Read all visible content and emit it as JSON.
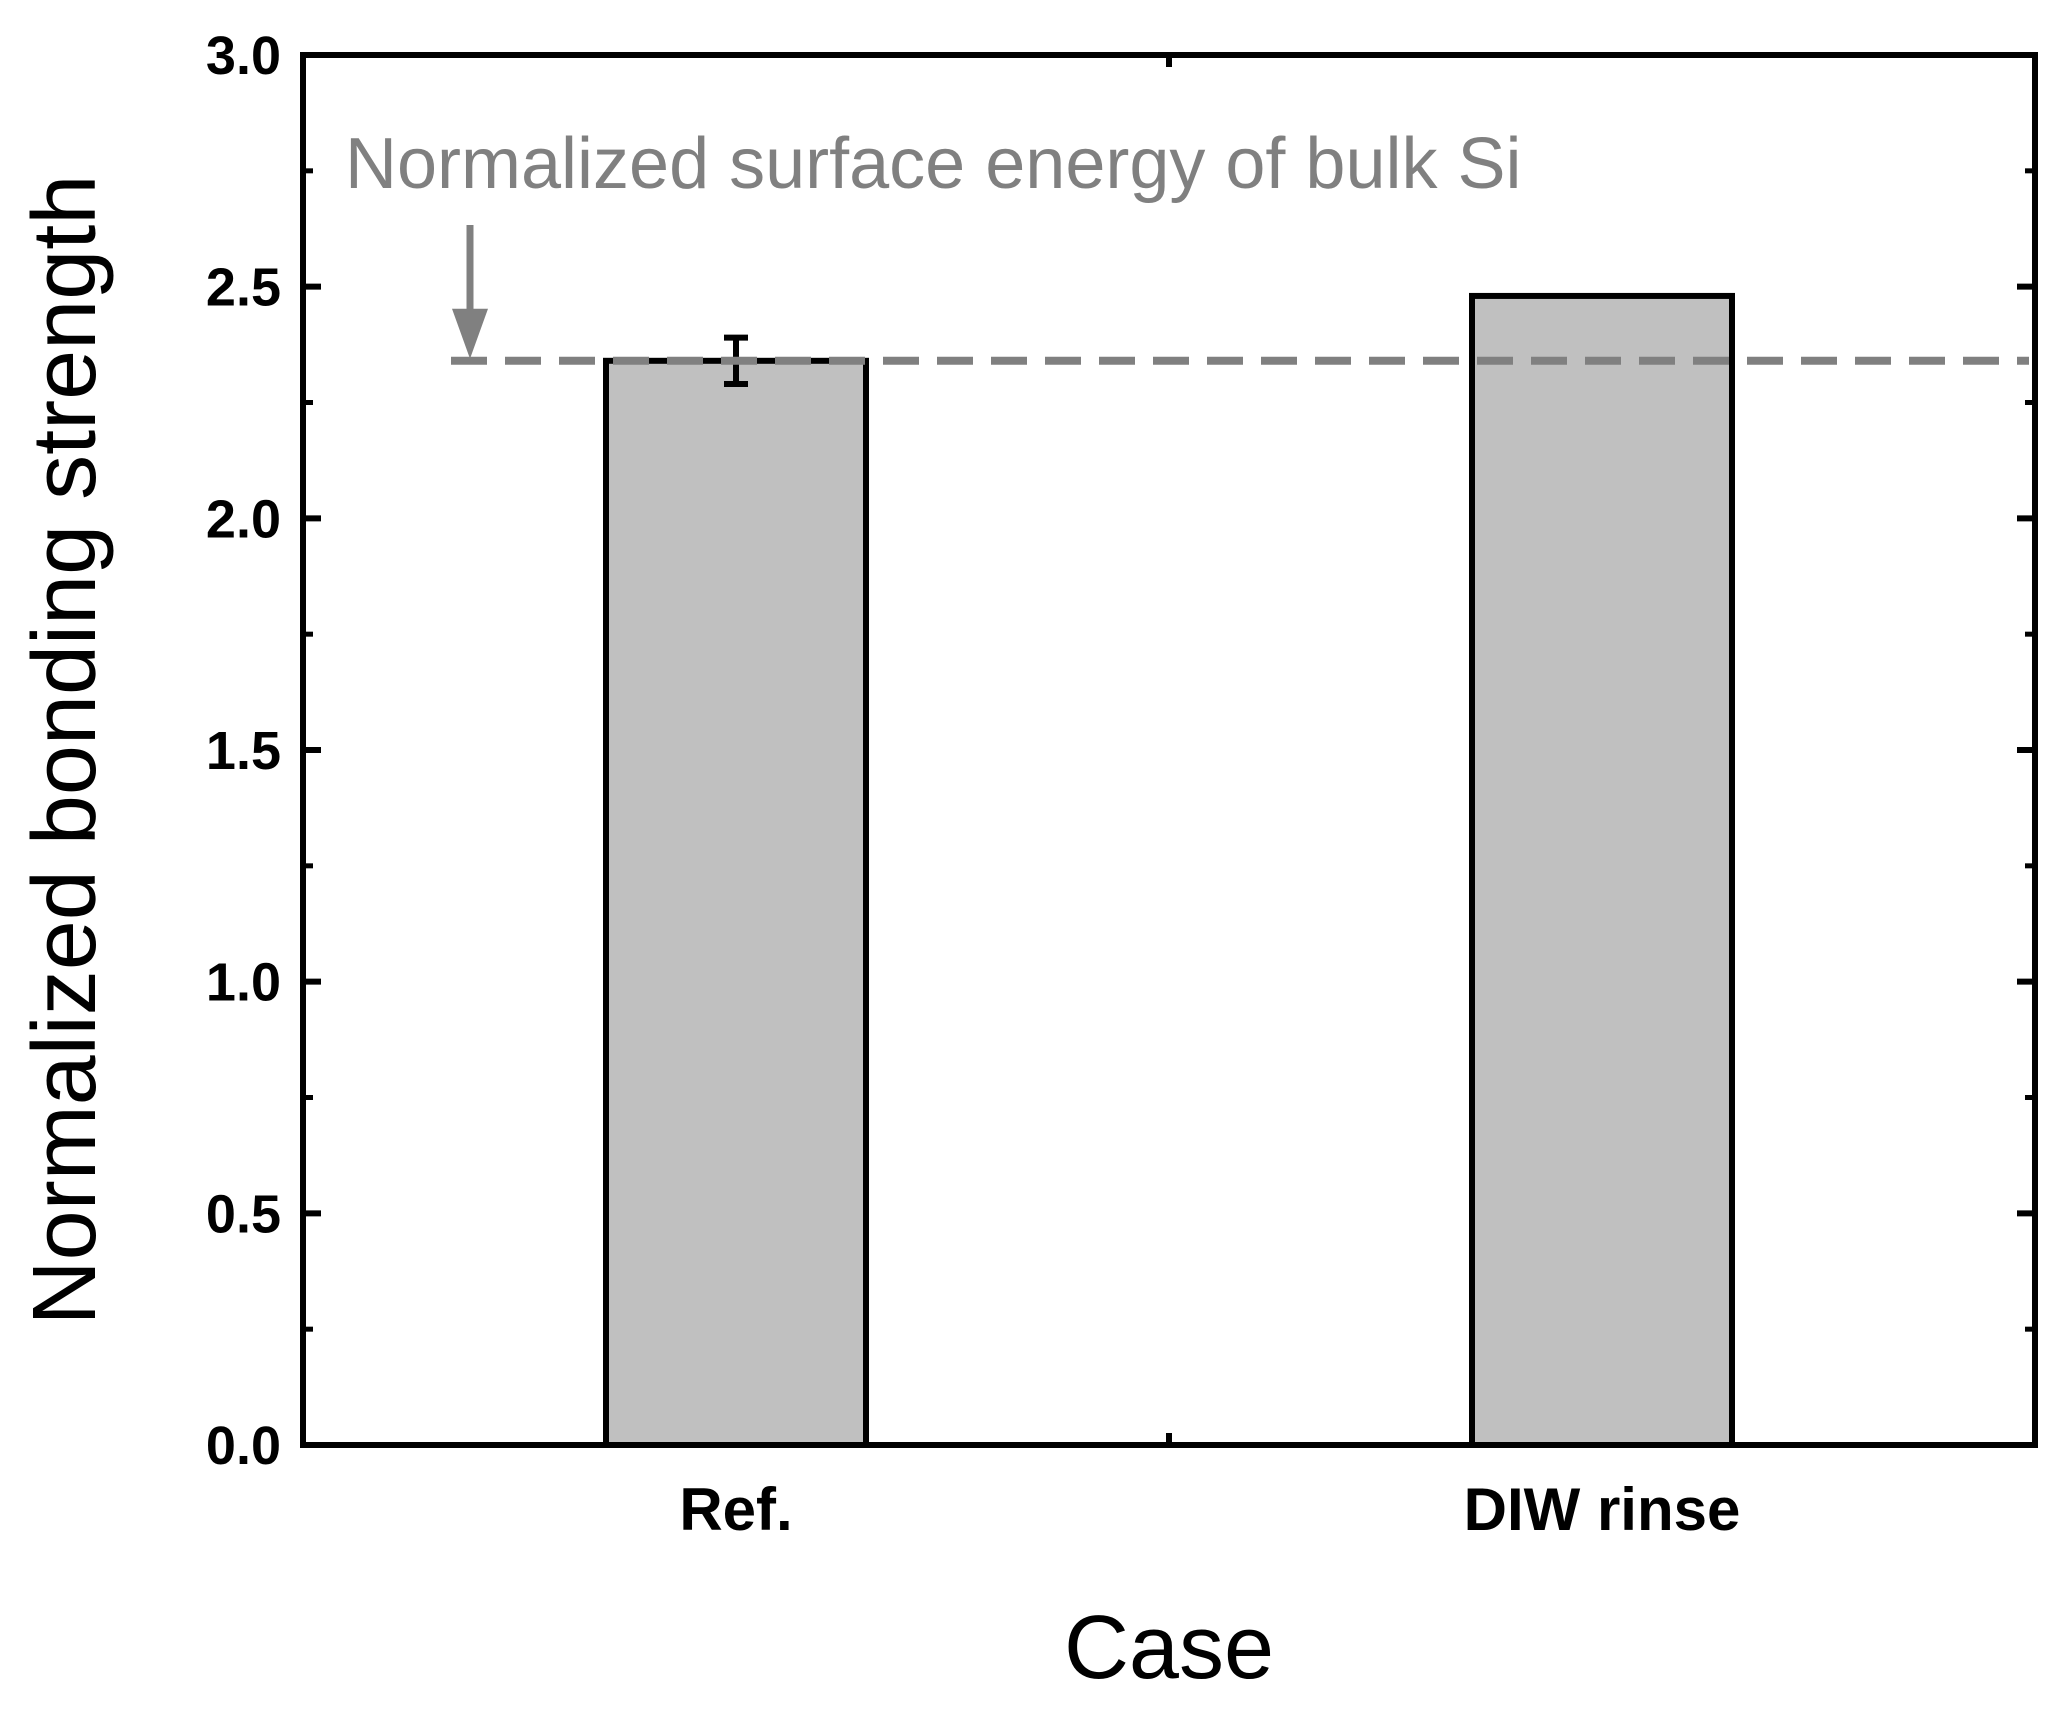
{
  "chart_data": {
    "type": "bar",
    "title": "",
    "xlabel": "Case",
    "ylabel": "Normalized bonding strength",
    "categories": [
      "Ref.",
      "DIW rinse"
    ],
    "values": [
      2.34,
      2.48
    ],
    "error": [
      0.05,
      null
    ],
    "ylim": [
      0,
      3.0
    ],
    "yticks": [
      0.0,
      0.5,
      1.0,
      1.5,
      2.0,
      2.5,
      3.0
    ],
    "ytick_labels": [
      "0.0",
      "0.5",
      "1.0",
      "1.5",
      "2.0",
      "2.5",
      "3.0"
    ],
    "bar_color": "#c0c0c0",
    "bar_edge_color": "#000000",
    "reference_line": {
      "value": 2.34,
      "label": "Normalized surface energy of bulk Si",
      "color": "#808080",
      "style": "dashed"
    },
    "grid": false
  }
}
